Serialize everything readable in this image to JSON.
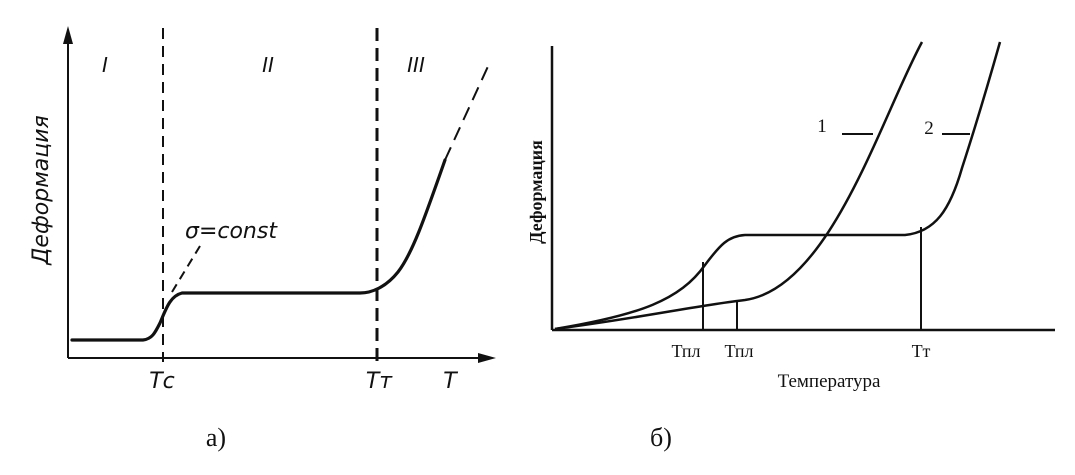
{
  "panel_a": {
    "caption": "а)",
    "y_axis_label": "Деформация",
    "x_axis_label": "T",
    "region_labels": [
      "I",
      "II",
      "III"
    ],
    "annotation": "σ=const",
    "boundary_labels": [
      "Tс",
      "Tт"
    ]
  },
  "panel_b": {
    "caption": "б)",
    "y_axis_label": "Деформация",
    "x_axis_label": "Температура",
    "curve_labels": [
      "1",
      "2"
    ],
    "tick_labels": [
      "Тпл",
      "Тпл",
      "Тт"
    ]
  },
  "colors": {
    "ink": "#111111",
    "background": "#ffffff"
  }
}
